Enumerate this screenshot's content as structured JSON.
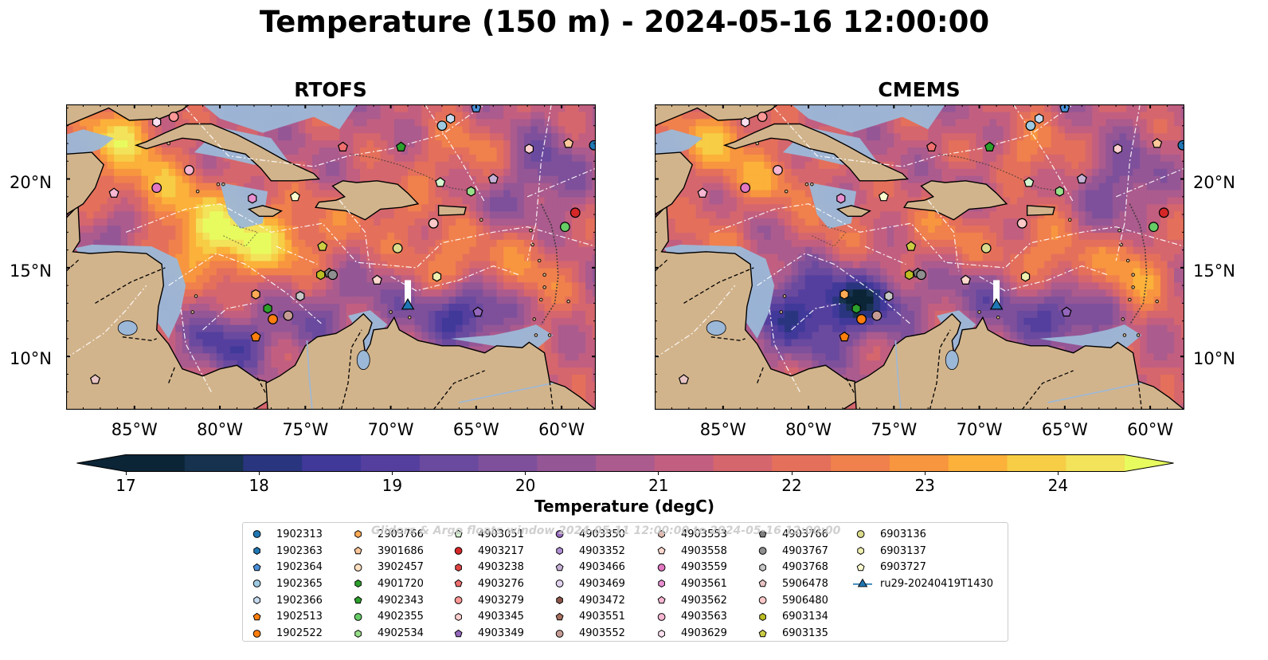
{
  "title": "Temperature (150 m) - 2024-05-16 12:00:00",
  "panels": [
    {
      "name": "RTOFS"
    },
    {
      "name": "CMEMS"
    }
  ],
  "axes": {
    "lon_labels": [
      "85°W",
      "80°W",
      "75°W",
      "70°W",
      "65°W",
      "60°W"
    ],
    "lat_labels": [
      "20°N",
      "15°N",
      "10°N"
    ]
  },
  "colorbar": {
    "label": "Temperature (degC)",
    "ticks": [
      "17",
      "18",
      "19",
      "20",
      "21",
      "22",
      "23",
      "24"
    ],
    "range": [
      17,
      24.5
    ],
    "colors": [
      "#0b2436",
      "#16324f",
      "#2a3580",
      "#40399a",
      "#543f9e",
      "#6a4a9e",
      "#7e509b",
      "#955696",
      "#ab5b8d",
      "#c25f80",
      "#d5666d",
      "#e4705b",
      "#f0804c",
      "#f7963f",
      "#fbb13a",
      "#f6cd45",
      "#f2e35a"
    ],
    "under_color": "#0b2436",
    "over_color": "#e8fb5e"
  },
  "watermark": "Gliders & Argo floats window 2024-05-11 12:00:00 to 2024-05-16 12:00:00",
  "legend": [
    {
      "id": "1902313",
      "marker": "circle",
      "color": "#1f77b4"
    },
    {
      "id": "1902363",
      "marker": "hexagon",
      "color": "#1f77b4"
    },
    {
      "id": "1902364",
      "marker": "pentagon",
      "color": "#4a90d9"
    },
    {
      "id": "1902365",
      "marker": "circle",
      "color": "#9ecae1"
    },
    {
      "id": "1902366",
      "marker": "hexagon",
      "color": "#c6dbef"
    },
    {
      "id": "1902513",
      "marker": "pentagon",
      "color": "#ff7f0e"
    },
    {
      "id": "1902522",
      "marker": "circle",
      "color": "#ff7f0e"
    },
    {
      "id": "2903766",
      "marker": "hexagon",
      "color": "#ffaa55"
    },
    {
      "id": "3901686",
      "marker": "pentagon",
      "color": "#ffc89a"
    },
    {
      "id": "3902457",
      "marker": "circle",
      "color": "#ffdfc0"
    },
    {
      "id": "4901720",
      "marker": "hexagon",
      "color": "#2ca02c"
    },
    {
      "id": "4902343",
      "marker": "pentagon",
      "color": "#2ca02c"
    },
    {
      "id": "4902355",
      "marker": "circle",
      "color": "#66cc66"
    },
    {
      "id": "4902534",
      "marker": "hexagon",
      "color": "#98df8a"
    },
    {
      "id": "4903051",
      "marker": "pentagon",
      "color": "#d4f5cf"
    },
    {
      "id": "4903217",
      "marker": "circle",
      "color": "#d62728"
    },
    {
      "id": "4903238",
      "marker": "hexagon",
      "color": "#e04444"
    },
    {
      "id": "4903276",
      "marker": "pentagon",
      "color": "#ef6f6f"
    },
    {
      "id": "4903279",
      "marker": "circle",
      "color": "#ff9896"
    },
    {
      "id": "4903345",
      "marker": "hexagon",
      "color": "#ffd0cf"
    },
    {
      "id": "4903349",
      "marker": "pentagon",
      "color": "#9467bd"
    },
    {
      "id": "4903350",
      "marker": "circle",
      "color": "#9467bd"
    },
    {
      "id": "4903352",
      "marker": "hexagon",
      "color": "#b08fd4"
    },
    {
      "id": "4903466",
      "marker": "pentagon",
      "color": "#c5b0d5"
    },
    {
      "id": "4903469",
      "marker": "circle",
      "color": "#e2d4f0"
    },
    {
      "id": "4903472",
      "marker": "hexagon",
      "color": "#8c564b"
    },
    {
      "id": "4903551",
      "marker": "pentagon",
      "color": "#a8705f"
    },
    {
      "id": "4903552",
      "marker": "circle",
      "color": "#c49c94"
    },
    {
      "id": "4903553",
      "marker": "hexagon",
      "color": "#e0b8ae"
    },
    {
      "id": "4903558",
      "marker": "pentagon",
      "color": "#ffd8cf"
    },
    {
      "id": "4903559",
      "marker": "circle",
      "color": "#e377c2"
    },
    {
      "id": "4903561",
      "marker": "hexagon",
      "color": "#e98fd0"
    },
    {
      "id": "4903562",
      "marker": "pentagon",
      "color": "#f7b6d2"
    },
    {
      "id": "4903563",
      "marker": "circle",
      "color": "#f7b6d2"
    },
    {
      "id": "4903629",
      "marker": "hexagon",
      "color": "#fde0ef"
    },
    {
      "id": "4903766",
      "marker": "pentagon",
      "color": "#7f7f7f"
    },
    {
      "id": "4903767",
      "marker": "circle",
      "color": "#8f8f8f"
    },
    {
      "id": "4903768",
      "marker": "hexagon",
      "color": "#c7c7c7"
    },
    {
      "id": "5906478",
      "marker": "pentagon",
      "color": "#e8c4c4"
    },
    {
      "id": "5906480",
      "marker": "circle",
      "color": "#ffc8c8"
    },
    {
      "id": "6903134",
      "marker": "hexagon",
      "color": "#bcbd22"
    },
    {
      "id": "6903135",
      "marker": "pentagon",
      "color": "#cccc44"
    },
    {
      "id": "6903136",
      "marker": "circle",
      "color": "#dbdb8d"
    },
    {
      "id": "6903137",
      "marker": "hexagon",
      "color": "#efefb0"
    },
    {
      "id": "6903727",
      "marker": "pentagon",
      "color": "#fdfdd0"
    },
    {
      "id": "ru29-20240419T1430",
      "marker": "triangle-line",
      "color": "#1f77b4"
    }
  ],
  "map_extent": {
    "lon": [
      -89,
      -58
    ],
    "lat": [
      7,
      24.2
    ]
  },
  "glider": {
    "name": "ru29-20240419T1430",
    "lon": -69.0,
    "lat": 12.9
  },
  "floats": [
    {
      "id": "1902313",
      "lon": -58.1,
      "lat": 21.9
    },
    {
      "id": "1902364",
      "lon": -65.0,
      "lat": 24.0
    },
    {
      "id": "1902365",
      "lon": -67.0,
      "lat": 23.0
    },
    {
      "id": "1902366",
      "lon": -66.5,
      "lat": 23.4
    },
    {
      "id": "1902513",
      "lon": -77.9,
      "lat": 11.1
    },
    {
      "id": "1902522",
      "lon": -76.9,
      "lat": 12.1
    },
    {
      "id": "2903766",
      "lon": -77.9,
      "lat": 13.5
    },
    {
      "id": "3901686",
      "lon": -59.6,
      "lat": 22.0
    },
    {
      "id": "3902457",
      "lon": -67.5,
      "lat": 17.5
    },
    {
      "id": "4901720",
      "lon": -77.2,
      "lat": 12.7
    },
    {
      "id": "4902343",
      "lon": -69.4,
      "lat": 21.8
    },
    {
      "id": "4902355",
      "lon": -59.8,
      "lat": 17.3
    },
    {
      "id": "4902534",
      "lon": -65.3,
      "lat": 19.3
    },
    {
      "id": "4903051",
      "lon": -67.1,
      "lat": 19.8
    },
    {
      "id": "4903217",
      "lon": -59.2,
      "lat": 18.1
    },
    {
      "id": "4903276",
      "lon": -72.8,
      "lat": 21.8
    },
    {
      "id": "4903279",
      "lon": -82.7,
      "lat": 23.5
    },
    {
      "id": "4903345",
      "lon": -61.9,
      "lat": 21.7
    },
    {
      "id": "4903349",
      "lon": -64.9,
      "lat": 12.5
    },
    {
      "id": "4903466",
      "lon": -64.0,
      "lat": 20.0
    },
    {
      "id": "4903552",
      "lon": -76.0,
      "lat": 12.3
    },
    {
      "id": "4903558",
      "lon": -70.8,
      "lat": 14.3
    },
    {
      "id": "4903559",
      "lon": -83.7,
      "lat": 19.5
    },
    {
      "id": "4903561",
      "lon": -78.1,
      "lat": 18.9
    },
    {
      "id": "4903562",
      "lon": -86.2,
      "lat": 19.2
    },
    {
      "id": "4903563",
      "lon": -81.8,
      "lat": 20.5
    },
    {
      "id": "4903629",
      "lon": -83.7,
      "lat": 23.2
    },
    {
      "id": "4903766",
      "lon": -73.6,
      "lat": 14.7
    },
    {
      "id": "4903767",
      "lon": -73.4,
      "lat": 14.6
    },
    {
      "id": "4903768",
      "lon": -75.3,
      "lat": 13.4
    },
    {
      "id": "5906478",
      "lon": -87.3,
      "lat": 8.7
    },
    {
      "id": "5906480",
      "lon": -67.5,
      "lat": 17.5
    },
    {
      "id": "6903134",
      "lon": -74.1,
      "lat": 14.6
    },
    {
      "id": "6903135",
      "lon": -74.0,
      "lat": 16.2
    },
    {
      "id": "6903136",
      "lon": -69.6,
      "lat": 16.1
    },
    {
      "id": "6903137",
      "lon": -67.3,
      "lat": 14.5
    },
    {
      "id": "6903727",
      "lon": -75.6,
      "lat": 19.0
    }
  ]
}
